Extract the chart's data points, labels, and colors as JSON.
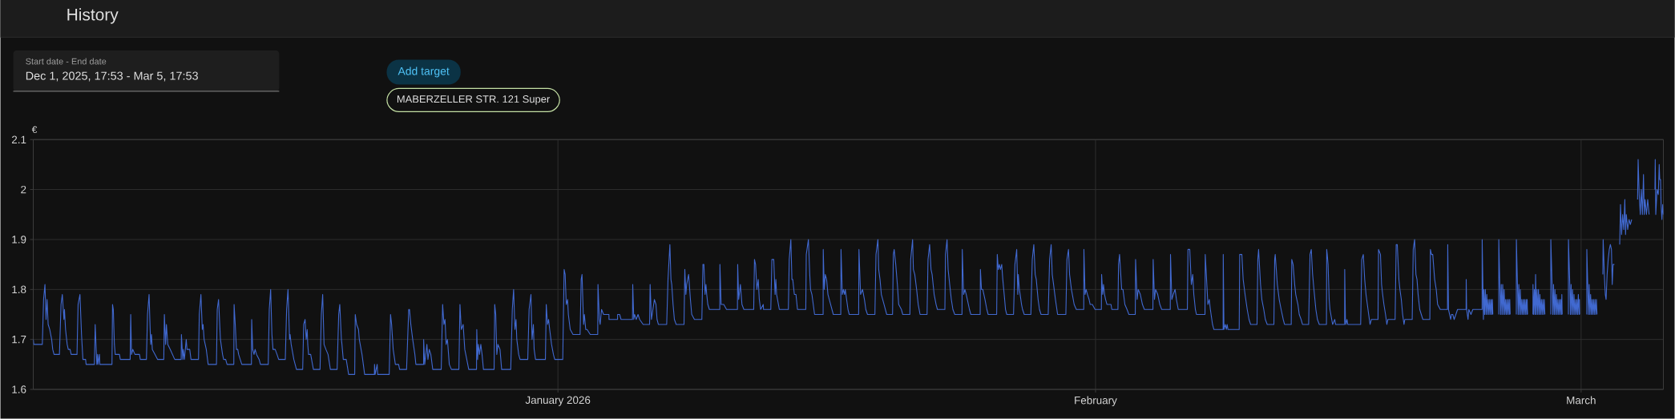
{
  "chart_data": {
    "type": "line",
    "title": "History",
    "ylabel": "€",
    "annotations": [
      "Start date - End date",
      "Dec 1, 2025, 17:53 - Mar 5, 17:53",
      "Add target",
      "MABERZELLER STR. 121 Super"
    ],
    "color": "#4169d0",
    "grid": true,
    "xlim": [
      "2025-12-01T17:53",
      "2026-03-05T17:53"
    ],
    "xticks": [
      {
        "value": "2026-01-01",
        "label": "January 2026"
      },
      {
        "value": "2026-02-01",
        "label": "February"
      },
      {
        "value": "2026-03-01",
        "label": "March"
      }
    ],
    "ylim": [
      1.6,
      2.1
    ],
    "yticks": [
      1.6,
      1.7,
      1.8,
      1.9,
      2,
      2.1
    ],
    "x": [
      "2025-12-01T17:53",
      "2025-12-01T18:35",
      "2025-12-02T06:25",
      "2025-12-02T08:10",
      "2025-12-02T10:05",
      "2025-12-02T11:35",
      "2025-12-02T13:00",
      "2025-12-02T14:30",
      "2025-12-02T16:40",
      "2025-12-02T19:20",
      "2025-12-02T20:50",
      "2025-12-02T22:40",
      "2025-12-03T06:05",
      "2025-12-03T08:20",
      "2025-12-03T10:05",
      "2025-12-03T12:20",
      "2025-12-03T13:05",
      "2025-12-03T14:35",
      "2025-12-03T16:50",
      "2025-12-03T18:20",
      "2025-12-03T20:50",
      "2025-12-03T22:20",
      "2025-12-04T06:25",
      "2025-12-04T07:55",
      "2025-12-04T10:30",
      "2025-12-04T12:40",
      "2025-12-04T14:35",
      "2025-12-04T18:20",
      "2025-12-04T19:00",
      "2025-12-05T06:30",
      "2025-12-05T07:35",
      "2025-12-05T09:50",
      "2025-12-05T10:55",
      "2025-12-05T11:30",
      "2025-12-05T13:30",
      "2025-12-05T14:00",
      "2025-12-06T06:50",
      "2025-12-06T07:35",
      "2025-12-06T08:40",
      "2025-12-06T10:10",
      "2025-12-06T11:20",
      "2025-12-06T17:10",
      "2025-12-06T18:20",
      "2025-12-07T08:00",
      "2025-12-07T08:45",
      "2025-12-07T09:55",
      "2025-12-07T11:40",
      "2025-12-07T14:35",
      "2025-12-07T20:55",
      "2025-12-07T22:00",
      "2025-12-08T06:30",
      "2025-12-08T08:00",
      "2025-12-08T10:10",
      "2025-12-08T11:40",
      "2025-12-08T12:30",
      "2025-12-08T13:30",
      "2025-12-08T14:40",
      "2025-12-08T18:25",
      "2025-12-08T22:00",
      "2025-12-09T06:30",
      "2025-12-09T07:20",
      "2025-12-09T09:05",
      "2025-12-09T10:10",
      "2025-12-09T12:05",
      "2025-12-09T15:30",
      "2025-12-09T21:40",
      "2025-12-10T06:35",
      "2025-12-10T06:55",
      "2025-12-10T08:50",
      "2025-12-10T09:35",
      "2025-12-10T11:05",
      "2025-12-10T13:35",
      "2025-12-10T14:40",
      "2025-12-10T18:25",
      "2025-12-10T20:10",
      "2025-12-11T06:35",
      "2025-12-11T07:40",
      "2025-12-11T09:55",
      "2025-12-11T11:50",
      "2025-12-11T12:55",
      "2025-12-11T14:20",
      "2025-12-11T17:20",
      "2025-12-11T19:55",
      "2025-12-12T07:25",
      "2025-12-12T08:30",
      "2025-12-12T10:20",
      "2025-12-12T12:55",
      "2025-12-12T15:50",
      "2025-12-12T17:20",
      "2025-12-12T20:10",
      "2025-12-12T22:05",
      "2025-12-13T07:25",
      "2025-12-13T07:50",
      "2025-12-13T09:25",
      "2025-12-13T11:05",
      "2025-12-13T12:55",
      "2025-12-13T14:05",
      "2025-12-13T18:30",
      "2025-12-14T07:50",
      "2025-12-14T08:10",
      "2025-12-14T09:35",
      "2025-12-14T11:25",
      "2025-12-14T12:55",
      "2025-12-14T14:55",
      "2025-12-14T18:30",
      "2025-12-14T20:20",
      "2025-12-15T07:05",
      "2025-12-15T08:30",
      "2025-12-15T10:25",
      "2025-12-15T12:10",
      "2025-12-15T13:40",
      "2025-12-15T16:40",
      "2025-12-15T19:15",
      "2025-12-15T21:30",
      "2025-12-16T06:40",
      "2025-12-16T08:30",
      "2025-12-16T10:25",
      "2025-12-16T12:35",
      "2025-12-16T13:20",
      "2025-12-16T14:50",
      "2025-12-16T18:30",
      "2025-12-16T22:10",
      "2025-12-17T06:45",
      "2025-12-17T08:10",
      "2025-12-17T10:05",
      "2025-12-17T11:35",
      "2025-12-17T13:00",
      "2025-12-17T13:45",
      "2025-12-17T14:55",
      "2025-12-17T17:50",
      "2025-12-17T21:35",
      "2025-12-18T06:45",
      "2025-12-18T08:35",
      "2025-12-18T10:25",
      "2025-12-18T12:20",
      "2025-12-18T14:55",
      "2025-12-18T17:50",
      "2025-12-18T21:05",
      "2025-12-19T06:25",
      "2025-12-19T08:35",
      "2025-12-19T10:05",
      "2025-12-19T12:20",
      "2025-12-19T13:05",
      "2025-12-19T14:55",
      "2025-12-19T19:00",
      "2025-12-19T22:20",
      "2025-12-20T06:45",
      "2025-12-20T07:30",
      "2025-12-20T09:25",
      "2025-12-20T12:00",
      "2025-12-20T13:05",
      "2025-12-20T16:50",
      "2025-12-20T20:30",
      "2025-12-21T10:00",
      "2025-12-21T10:10",
      "2025-12-21T11:00",
      "2025-12-21T13:50",
      "2025-12-21T14:30",
      "2025-12-22T06:30",
      "2025-12-22T08:20",
      "2025-12-22T09:50",
      "2025-12-22T12:00",
      "2025-12-22T15:00",
      "2025-12-22T19:30",
      "2025-12-22T20:55",
      "2025-12-23T06:30",
      "2025-12-23T09:30",
      "2025-12-23T10:35",
      "2025-12-23T12:25",
      "2025-12-23T15:00",
      "2025-12-23T18:00",
      "2025-12-23T19:25",
      "2025-12-24T06:05",
      "2025-12-24T06:10",
      "2025-12-24T07:40",
      "2025-12-24T10:40",
      "2025-12-24T12:05",
      "2025-12-24T13:55",
      "2025-12-24T16:05",
      "2025-12-24T18:45",
      "2025-12-25T06:30",
      "2025-12-25T08:25",
      "2025-12-25T10:15",
      "2025-12-25T11:45",
      "2025-12-25T13:15",
      "2025-12-25T15:05",
      "2025-12-25T17:40",
      "2025-12-25T20:35",
      "2025-12-26T06:55",
      "2025-12-26T08:25",
      "2025-12-26T10:15",
      "2025-12-26T12:50",
      "2025-12-26T15:05",
      "2025-12-26T20:35",
      "2025-12-27T07:20",
      "2025-12-27T07:40",
      "2025-12-27T08:50",
      "2025-12-27T09:55",
      "2025-12-27T11:25",
      "2025-12-27T13:15",
      "2025-12-27T15:00",
      "2025-12-27T16:55",
      "2025-12-28T07:40",
      "2025-12-28T08:30",
      "2025-12-28T09:55",
      "2025-12-28T11:25",
      "2025-12-28T12:55",
      "2025-12-28T15:50",
      "2025-12-28T18:05",
      "2025-12-29T06:40",
      "2025-12-29T08:50",
      "2025-12-29T10:40",
      "2025-12-29T12:30",
      "2025-12-29T14:00",
      "2025-12-29T15:05",
      "2025-12-29T17:40",
      "2025-12-29T19:35",
      "2025-12-30T06:15",
      "2025-12-30T08:05",
      "2025-12-30T10:40",
      "2025-12-30T12:10",
      "2025-12-30T14:00",
      "2025-12-30T15:05",
      "2025-12-30T17:00",
      "2025-12-31T06:40",
      "2025-12-31T07:50",
      "2025-12-31T09:35",
      "2025-12-31T11:05",
      "2025-12-31T12:35",
      "2025-12-31T15:10",
      "2025-12-31T17:45",
      "2025-12-31T19:35",
      "2026-01-01T06:40",
      "2026-01-01T08:35",
      "2026-01-01T10:00",
      "2026-01-01T11:30",
      "2026-01-01T13:20",
      "2026-01-01T14:25",
      "2026-01-01T17:00",
      "2026-01-01T20:50",
      "2026-01-02T06:40",
      "2026-01-02T08:10",
      "2026-01-02T09:20",
      "2026-01-02T11:30",
      "2026-01-02T12:35",
      "2026-01-02T14:30",
      "2026-01-02T16:20",
      "2026-01-02T20:45",
      "2026-01-03T07:05",
      "2026-01-03T07:25",
      "2026-01-03T09:20",
      "2026-01-03T10:25",
      "2026-01-03T12:20",
      "2026-01-03T15:10",
      "2026-01-03T22:35",
      "2026-01-03T22:40",
      "2026-01-04T10:30",
      "2026-01-04T10:35",
      "2026-01-04T13:25",
      "2026-01-04T15:20",
      "2026-01-05T07:10",
      "2026-01-05T07:30",
      "2026-01-05T09:00",
      "2026-01-05T10:05",
      "2026-01-05T12:20",
      "2026-01-05T14:50",
      "2026-01-05T17:05",
      "2026-01-05T21:55",
      "2026-01-06T06:50",
      "2026-01-06T07:35",
      "2026-01-06T09:25",
      "2026-01-06T13:30",
      "2026-01-06T15:40",
      "2026-01-06T17:10",
      "2026-01-06T19:00",
      "2026-01-07T06:30",
      "2026-01-07T08:20",
      "2026-01-07T10:55",
      "2026-01-07T12:25",
      "2026-01-07T13:30",
      "2026-01-07T15:20",
      "2026-01-07T17:10",
      "2026-01-07T19:40",
      "2026-01-08T06:30",
      "2026-01-08T07:35",
      "2026-01-08T09:05",
      "2026-01-08T10:10",
      "2026-01-08T12:50",
      "2026-01-08T15:20",
      "2026-01-08T17:10",
      "2026-01-08T20:55",
      "2026-01-09T07:10",
      "2026-01-09T08:40",
      "2026-01-09T10:00",
      "2026-01-09T11:40",
      "2026-01-09T12:50",
      "2026-01-09T13:55",
      "2026-01-09T15:25",
      "2026-01-09T17:35",
      "2026-01-10T08:00",
      "2026-01-10T08:10",
      "2026-01-10T09:50",
      "2026-01-10T13:30",
      "2026-01-10T17:20",
      "2026-01-11T08:25",
      "2026-01-11T08:45",
      "2026-01-11T10:10",
      "2026-01-11T12:30",
      "2026-01-11T14:40",
      "2026-01-11T17:20",
      "2026-01-12T06:55",
      "2026-01-12T08:00",
      "2026-01-12T09:30",
      "2026-01-12T11:20",
      "2026-01-12T13:10",
      "2026-01-12T14:40",
      "2026-01-12T16:30",
      "2026-01-12T20:10",
      "2026-01-12T20:30",
      "2026-01-13T06:35",
      "2026-01-13T08:05",
      "2026-01-13T10:40",
      "2026-01-13T12:30",
      "2026-01-13T13:35",
      "2026-01-13T14:40",
      "2026-01-13T18:25",
      "2026-01-14T06:55",
      "2026-01-14T08:05",
      "2026-01-14T10:20",
      "2026-01-14T11:50",
      "2026-01-14T13:00",
      "2026-01-14T15:10",
      "2026-01-14T17:25",
      "2026-01-14T19:30",
      "2026-01-15T07:00",
      "2026-01-15T07:40",
      "2026-01-15T10:40",
      "2026-01-15T12:30",
      "2026-01-15T13:35",
      "2026-01-15T15:30",
      "2026-01-15T19:10",
      "2026-01-16T07:00",
      "2026-01-16T07:10",
      "2026-01-16T08:35",
      "2026-01-16T10:00",
      "2026-01-16T11:50",
      "2026-01-16T13:40",
      "2026-01-16T17:25",
      "2026-01-16T21:05",
      "2026-01-17T07:25",
      "2026-01-17T07:45",
      "2026-01-17T09:35",
      "2026-01-17T11:05",
      "2026-01-17T12:35",
      "2026-01-17T13:40",
      "2026-01-17T15:30",
      "2026-01-17T17:25",
      "2026-01-17T19:10",
      "2026-01-18T08:10",
      "2026-01-18T08:35",
      "2026-01-18T10:50",
      "2026-01-18T13:35",
      "2026-01-18T16:10",
      "2026-01-18T18:05",
      "2026-01-18T20:25",
      "2026-01-19T06:40",
      "2026-01-19T08:10",
      "2026-01-19T10:50",
      "2026-01-19T11:55",
      "2026-01-19T13:45",
      "2026-01-19T15:35",
      "2026-01-19T19:20",
      "2026-01-19T23:00",
      "2026-01-20T07:05",
      "2026-01-20T08:10",
      "2026-01-20T09:20",
      "2026-01-20T11:30",
      "2026-01-20T13:45",
      "2026-01-20T15:35",
      "2026-01-20T19:20",
      "2026-01-20T21:10",
      "2026-01-21T07:05",
      "2026-01-21T08:10",
      "2026-01-21T10:50",
      "2026-01-21T11:55",
      "2026-01-21T13:50",
      "2026-01-21T16:25",
      "2026-01-21T18:35",
      "2026-01-21T21:10",
      "2026-01-22T06:50",
      "2026-01-22T08:10",
      "2026-01-22T10:25",
      "2026-01-22T12:20",
      "2026-01-22T13:50",
      "2026-01-22T16:40",
      "2026-01-22T19:20",
      "2026-01-22T21:10",
      "2026-01-23T07:30",
      "2026-01-23T08:20",
      "2026-01-23T10:30",
      "2026-01-23T12:00",
      "2026-01-23T14:10",
      "2026-01-23T16:25",
      "2026-01-23T18:35",
      "2026-01-23T21:10",
      "2026-01-24T07:10",
      "2026-01-24T07:35",
      "2026-01-24T09:25",
      "2026-01-24T11:15",
      "2026-01-24T13:05",
      "2026-01-24T14:35",
      "2026-01-24T17:30",
      "2026-01-24T19:25",
      "2026-01-25T08:20",
      "2026-01-25T08:40",
      "2026-01-25T10:10",
      "2026-01-25T12:00",
      "2026-01-25T15:00",
      "2026-01-25T17:35",
      "2026-01-25T19:25",
      "2026-01-26T07:10",
      "2026-01-26T08:00",
      "2026-01-26T09:25",
      "2026-01-26T10:55",
      "2026-01-26T12:20",
      "2026-01-26T14:10",
      "2026-01-26T15:40",
      "2026-01-26T17:35",
      "2026-01-26T19:25",
      "2026-01-26T21:10",
      "2026-01-27T06:30",
      "2026-01-27T08:25",
      "2026-01-27T10:55",
      "2026-01-27T12:25",
      "2026-01-27T13:10",
      "2026-01-27T14:35",
      "2026-01-27T15:40",
      "2026-01-27T17:35",
      "2026-01-27T19:00",
      "2026-01-27T21:20",
      "2026-01-28T06:30",
      "2026-01-28T08:25",
      "2026-01-28T10:35",
      "2026-01-28T12:30",
      "2026-01-28T14:00",
      "2026-01-28T16:30",
      "2026-01-28T18:25",
      "2026-01-28T20:35",
      "2026-01-29T06:30",
      "2026-01-29T08:25",
      "2026-01-29T10:35",
      "2026-01-29T12:05",
      "2026-01-29T13:55",
      "2026-01-29T16:30",
      "2026-01-29T19:30",
      "2026-01-30T06:55",
      "2026-01-30T08:25",
      "2026-01-30T10:35",
      "2026-01-30T12:05",
      "2026-01-30T14:40",
      "2026-01-30T18:25",
      "2026-01-30T21:25",
      "2026-01-31T07:40",
      "2026-01-31T07:55",
      "2026-01-31T09:30",
      "2026-01-31T11:00",
      "2026-01-31T12:50",
      "2026-01-31T15:05",
      "2026-01-31T16:35",
      "2026-01-31T19:35",
      "2026-01-31T23:20",
      "2026-02-01T08:05",
      "2026-02-01T08:25",
      "2026-02-01T09:55",
      "2026-02-01T11:00",
      "2026-02-01T12:30",
      "2026-02-01T13:55",
      "2026-02-01T15:50",
      "2026-02-01T21:25",
      "2026-02-01T22:30",
      "2026-02-02T07:00",
      "2026-02-02T07:50",
      "2026-02-02T09:15",
      "2026-02-02T12:10",
      "2026-02-02T14:00",
      "2026-02-02T16:35",
      "2026-02-02T19:35",
      "2026-02-02T22:10",
      "2026-02-03T07:00",
      "2026-02-03T07:25",
      "2026-02-03T09:35",
      "2026-02-03T11:05",
      "2026-02-03T14:00",
      "2026-02-03T16:55",
      "2026-02-03T19:35",
      "2026-02-04T07:25",
      "2026-02-04T07:45",
      "2026-02-04T09:35",
      "2026-02-04T11:05",
      "2026-02-04T14:05",
      "2026-02-04T17:00",
      "2026-02-04T19:35",
      "2026-02-05T07:25",
      "2026-02-05T07:45",
      "2026-02-05T09:35",
      "2026-02-05T11:30",
      "2026-02-05T14:05",
      "2026-02-05T15:55",
      "2026-02-05T18:30",
      "2026-02-06T07:05",
      "2026-02-06T07:55",
      "2026-02-06T10:25",
      "2026-02-06T12:35",
      "2026-02-06T14:30",
      "2026-02-06T16:00",
      "2026-02-06T18:10",
      "2026-02-06T19:40",
      "2026-02-07T07:30",
      "2026-02-07T07:50",
      "2026-02-07T10:25",
      "2026-02-07T11:30",
      "2026-02-07T13:25",
      "2026-02-07T14:55",
      "2026-02-07T17:55",
      "2026-02-07T19:45",
      "2026-02-08T08:35",
      "2026-02-08T08:45",
      "2026-02-08T09:45",
      "2026-02-08T11:35",
      "2026-02-08T13:00",
      "2026-02-08T14:10",
      "2026-02-08T15:15",
      "2026-02-09T06:50",
      "2026-02-09T07:30",
      "2026-02-09T10:30",
      "2026-02-09T12:20",
      "2026-02-09T14:55",
      "2026-02-09T17:55",
      "2026-02-09T20:25",
      "2026-02-09T22:40",
      "2026-02-10T07:30",
      "2026-02-10T08:35",
      "2026-02-10T09:40",
      "2026-02-10T12:20",
      "2026-02-10T14:10",
      "2026-02-10T16:50",
      "2026-02-10T19:00",
      "2026-02-10T21:35",
      "2026-02-11T06:50",
      "2026-02-11T07:55",
      "2026-02-11T08:40",
      "2026-02-11T10:10",
      "2026-02-11T11:35",
      "2026-02-11T14:10",
      "2026-02-11T16:50",
      "2026-02-11T19:45",
      "2026-02-11T21:35",
      "2026-02-12T06:50",
      "2026-02-12T07:35",
      "2026-02-12T09:25",
      "2026-02-12T11:35",
      "2026-02-12T13:05",
      "2026-02-12T16:05",
      "2026-02-12T17:55",
      "2026-02-12T20:30",
      "2026-02-12T22:25",
      "2026-02-13T06:55",
      "2026-02-13T08:50",
      "2026-02-13T10:35",
      "2026-02-13T12:25",
      "2026-02-13T14:15",
      "2026-02-13T16:55",
      "2026-02-13T19:05",
      "2026-02-13T21:40",
      "2026-02-14T07:35",
      "2026-02-14T07:55",
      "2026-02-14T08:40",
      "2026-02-14T09:50",
      "2026-02-14T11:20",
      "2026-02-14T12:25",
      "2026-02-14T16:05",
      "2026-02-14T19:05",
      "2026-02-14T20:10",
      "2026-02-15T08:45",
      "2026-02-15T08:50",
      "2026-02-15T09:50",
      "2026-02-15T10:30",
      "2026-02-15T12:00",
      "2026-02-15T13:05",
      "2026-02-16T06:55",
      "2026-02-16T08:25",
      "2026-02-16T10:35",
      "2026-02-16T12:30",
      "2026-02-16T14:20",
      "2026-02-16T16:10",
      "2026-02-16T18:00",
      "2026-02-16T19:55",
      "2026-02-16T21:45",
      "2026-02-17T06:55",
      "2026-02-17T07:40",
      "2026-02-17T10:20",
      "2026-02-17T11:50",
      "2026-02-17T13:20",
      "2026-02-17T15:05",
      "2026-02-17T17:20",
      "2026-02-17T19:10",
      "2026-02-17T20:35",
      "2026-02-18T06:35",
      "2026-02-18T08:05",
      "2026-02-18T09:35",
      "2026-02-18T11:50",
      "2026-02-18T13:15",
      "2026-02-18T15:10",
      "2026-02-18T17:00",
      "2026-02-18T18:55",
      "2026-02-18T20:00",
      "2026-02-19T06:15",
      "2026-02-19T07:40",
      "2026-02-19T09:35",
      "2026-02-19T11:25",
      "2026-02-19T12:55",
      "2026-02-19T14:25",
      "2026-02-19T16:40",
      "2026-02-19T18:50",
      "2026-02-19T21:00",
      "2026-02-20T06:40",
      "2026-02-20T07:25",
      "2026-02-20T08:55",
      "2026-02-20T10:40",
      "2026-02-20T13:20",
      "2026-02-20T15:30",
      "2026-02-20T17:25",
      "2026-02-20T21:05",
      "2026-02-21T07:05",
      "2026-02-21T07:25",
      "2026-02-21T08:30",
      "2026-02-21T11:30",
      "2026-02-21T12:35",
      "2026-02-21T14:25",
      "2026-02-21T16:20",
      "2026-02-21T21:00",
      "2026-02-22T08:50",
      "2026-02-22T09:00",
      "2026-02-22T09:35",
      "2026-02-22T11:30",
      "2026-02-22T12:35",
      "2026-02-22T15:35",
      "2026-02-22T18:10",
      "2026-02-23T07:00",
      "2026-02-23T07:05",
      "2026-02-23T08:50",
      "2026-02-23T09:30",
      "2026-02-23T10:30",
      "2026-02-23T11:30",
      "2026-02-23T12:30",
      "2026-02-23T13:30",
      "2026-02-23T14:30",
      "2026-02-23T15:30",
      "2026-02-23T16:30",
      "2026-02-23T17:30",
      "2026-02-23T18:30",
      "2026-02-23T19:30",
      "2026-02-23T20:30",
      "2026-02-23T21:15",
      "2026-02-23T21:50",
      "2026-02-23T23:00",
      "2026-02-24T06:00",
      "2026-02-24T06:05",
      "2026-02-24T07:30",
      "2026-02-24T08:30",
      "2026-02-24T09:30",
      "2026-02-24T10:30",
      "2026-02-24T11:30",
      "2026-02-24T12:30",
      "2026-02-24T13:30",
      "2026-02-24T14:30",
      "2026-02-24T15:30",
      "2026-02-24T16:30",
      "2026-02-24T17:30",
      "2026-02-24T18:30",
      "2026-02-24T19:30",
      "2026-02-24T20:30",
      "2026-02-24T21:15",
      "2026-02-24T21:50",
      "2026-02-24T23:00",
      "2026-02-25T06:20",
      "2026-02-25T06:25",
      "2026-02-25T07:55",
      "2026-02-25T08:50",
      "2026-02-25T09:50",
      "2026-02-25T10:50",
      "2026-02-25T11:50",
      "2026-02-25T12:50",
      "2026-02-25T13:50",
      "2026-02-25T14:50",
      "2026-02-25T15:50",
      "2026-02-25T16:50",
      "2026-02-25T17:50",
      "2026-02-25T18:50",
      "2026-02-25T19:50",
      "2026-02-25T20:50",
      "2026-02-25T21:20",
      "2026-02-25T21:50",
      "2026-02-25T23:00",
      "2026-02-26T05:20",
      "2026-02-26T05:25",
      "2026-02-26T06:20",
      "2026-02-26T07:20",
      "2026-02-26T08:20",
      "2026-02-26T09:00",
      "2026-02-26T10:00",
      "2026-02-26T11:00",
      "2026-02-26T12:00",
      "2026-02-26T13:00",
      "2026-02-26T14:00",
      "2026-02-26T15:00",
      "2026-02-26T16:00",
      "2026-02-26T17:00",
      "2026-02-26T18:00",
      "2026-02-26T19:00",
      "2026-02-26T20:00",
      "2026-02-26T21:00",
      "2026-02-26T21:50",
      "2026-02-26T23:00",
      "2026-02-27T06:00",
      "2026-02-27T06:05",
      "2026-02-27T07:50",
      "2026-02-27T08:50",
      "2026-02-27T09:50",
      "2026-02-27T10:50",
      "2026-02-27T11:50",
      "2026-02-27T12:50",
      "2026-02-27T13:50",
      "2026-02-27T14:50",
      "2026-02-27T15:50",
      "2026-02-27T16:50",
      "2026-02-27T17:50",
      "2026-02-27T18:50",
      "2026-02-27T19:50",
      "2026-02-27T20:50",
      "2026-02-27T21:20",
      "2026-02-27T21:50",
      "2026-02-27T23:00",
      "2026-02-28T06:25",
      "2026-02-28T06:30",
      "2026-02-28T08:20",
      "2026-02-28T09:10",
      "2026-02-28T10:10",
      "2026-02-28T11:10",
      "2026-02-28T12:10",
      "2026-02-28T13:10",
      "2026-02-28T14:10",
      "2026-02-28T15:10",
      "2026-02-28T16:10",
      "2026-02-28T17:10",
      "2026-02-28T18:10",
      "2026-02-28T19:10",
      "2026-02-28T20:10",
      "2026-02-28T21:10",
      "2026-02-28T21:40",
      "2026-02-28T22:00",
      "2026-02-28T23:00",
      "2026-03-01T07:50",
      "2026-03-01T07:55",
      "2026-03-01T09:20",
      "2026-03-01T10:10",
      "2026-03-01T11:10",
      "2026-03-01T12:10",
      "2026-03-01T13:10",
      "2026-03-01T14:10",
      "2026-03-01T15:10",
      "2026-03-01T16:10",
      "2026-03-01T17:10",
      "2026-03-01T18:10",
      "2026-03-01T19:10",
      "2026-03-01T20:10",
      "2026-03-01T21:10",
      "2026-03-01T22:00",
      "2026-03-01T23:00",
      "2026-03-02T06:05",
      "2026-03-02T06:30",
      "2026-03-02T08:25",
      "2026-03-02T09:30",
      "2026-03-02T10:35",
      "2026-03-02T12:00",
      "2026-03-02T13:30",
      "2026-03-02T15:00",
      "2026-03-02T16:30",
      "2026-03-02T18:00",
      "2026-03-02T19:05",
      "2026-03-02T20:10",
      "2026-03-02T22:00",
      "2026-03-02T23:00",
      "2026-03-03T05:25",
      "2026-03-03T06:30",
      "2026-03-03T08:00",
      "2026-03-03T09:30",
      "2026-03-03T11:00",
      "2026-03-03T12:30",
      "2026-03-03T13:30",
      "2026-03-03T14:35",
      "2026-03-03T16:30",
      "2026-03-03T18:20",
      "2026-03-03T20:10",
      "2026-03-03T22:00",
      "2026-03-03T23:00",
      "2026-03-04T06:10",
      "2026-03-04T06:55",
      "2026-03-04T08:25",
      "2026-03-04T09:55",
      "2026-03-04T11:20",
      "2026-03-04T12:50",
      "2026-03-04T14:20",
      "2026-03-04T15:25",
      "2026-03-04T16:30",
      "2026-03-04T18:25",
      "2026-03-04T20:10",
      "2026-03-04T22:05",
      "2026-03-04T23:00",
      "2026-03-05T06:10",
      "2026-03-05T06:35",
      "2026-03-05T07:20",
      "2026-03-05T09:05",
      "2026-03-05T10:50",
      "2026-03-05T12:05",
      "2026-03-05T12:50",
      "2026-03-05T13:55",
      "2026-03-05T14:40",
      "2026-03-05T15:50",
      "2026-03-05T16:55",
      "2026-03-05T17:50"
    ],
    "values": [
      1.7,
      1.69,
      1.69,
      1.78,
      1.81,
      1.74,
      1.78,
      1.73,
      1.72,
      1.7,
      1.68,
      1.67,
      1.67,
      1.77,
      1.79,
      1.74,
      1.76,
      1.72,
      1.69,
      1.68,
      1.68,
      1.67,
      1.67,
      1.77,
      1.79,
      1.71,
      1.66,
      1.66,
      1.65,
      1.65,
      1.73,
      1.65,
      1.67,
      1.65,
      1.67,
      1.65,
      1.65,
      1.77,
      1.76,
      1.69,
      1.67,
      1.67,
      1.66,
      1.66,
      1.75,
      1.67,
      1.68,
      1.67,
      1.67,
      1.66,
      1.66,
      1.75,
      1.79,
      1.72,
      1.69,
      1.71,
      1.68,
      1.67,
      1.66,
      1.66,
      1.75,
      1.69,
      1.73,
      1.69,
      1.68,
      1.66,
      1.66,
      1.71,
      1.66,
      1.68,
      1.66,
      1.7,
      1.68,
      1.68,
      1.66,
      1.66,
      1.75,
      1.79,
      1.72,
      1.73,
      1.7,
      1.68,
      1.65,
      1.65,
      1.76,
      1.78,
      1.7,
      1.67,
      1.66,
      1.66,
      1.65,
      1.65,
      1.77,
      1.73,
      1.68,
      1.68,
      1.67,
      1.65,
      1.65,
      1.74,
      1.68,
      1.67,
      1.68,
      1.67,
      1.66,
      1.65,
      1.65,
      1.76,
      1.8,
      1.71,
      1.68,
      1.68,
      1.67,
      1.66,
      1.66,
      1.76,
      1.8,
      1.7,
      1.71,
      1.69,
      1.66,
      1.64,
      1.64,
      1.73,
      1.74,
      1.7,
      1.72,
      1.69,
      1.67,
      1.67,
      1.64,
      1.64,
      1.75,
      1.79,
      1.69,
      1.68,
      1.67,
      1.64,
      1.64,
      1.75,
      1.77,
      1.7,
      1.69,
      1.66,
      1.66,
      1.63,
      1.63,
      1.75,
      1.73,
      1.72,
      1.7,
      1.67,
      1.63,
      1.63,
      1.65,
      1.63,
      1.65,
      1.63,
      1.63,
      1.75,
      1.73,
      1.68,
      1.65,
      1.65,
      1.64,
      1.64,
      1.76,
      1.76,
      1.73,
      1.7,
      1.67,
      1.65,
      1.65,
      1.7,
      1.65,
      1.69,
      1.66,
      1.68,
      1.67,
      1.64,
      1.64,
      1.77,
      1.73,
      1.74,
      1.69,
      1.7,
      1.65,
      1.64,
      1.64,
      1.77,
      1.72,
      1.73,
      1.68,
      1.64,
      1.64,
      1.72,
      1.66,
      1.69,
      1.67,
      1.69,
      1.67,
      1.64,
      1.64,
      1.77,
      1.75,
      1.67,
      1.69,
      1.68,
      1.64,
      1.64,
      1.76,
      1.8,
      1.72,
      1.74,
      1.7,
      1.67,
      1.66,
      1.66,
      1.76,
      1.79,
      1.7,
      1.73,
      1.68,
      1.66,
      1.66,
      1.77,
      1.73,
      1.74,
      1.72,
      1.69,
      1.67,
      1.66,
      1.66,
      1.84,
      1.83,
      1.77,
      1.78,
      1.75,
      1.72,
      1.71,
      1.71,
      1.82,
      1.83,
      1.73,
      1.75,
      1.72,
      1.72,
      1.71,
      1.71,
      1.81,
      1.74,
      1.73,
      1.76,
      1.75,
      1.75,
      1.74,
      1.74,
      1.75,
      1.75,
      1.74,
      1.74,
      1.81,
      1.74,
      1.75,
      1.74,
      1.75,
      1.74,
      1.73,
      1.73,
      1.81,
      1.74,
      1.78,
      1.77,
      1.74,
      1.73,
      1.73,
      1.82,
      1.89,
      1.82,
      1.81,
      1.77,
      1.74,
      1.73,
      1.73,
      1.84,
      1.79,
      1.81,
      1.83,
      1.78,
      1.75,
      1.74,
      1.74,
      1.85,
      1.85,
      1.79,
      1.81,
      1.79,
      1.77,
      1.76,
      1.76,
      1.85,
      1.77,
      1.77,
      1.76,
      1.76,
      1.85,
      1.78,
      1.81,
      1.77,
      1.76,
      1.76,
      1.86,
      1.85,
      1.8,
      1.82,
      1.78,
      1.76,
      1.77,
      1.76,
      1.76,
      1.86,
      1.86,
      1.79,
      1.82,
      1.79,
      1.76,
      1.76,
      1.86,
      1.9,
      1.82,
      1.82,
      1.79,
      1.79,
      1.76,
      1.76,
      1.87,
      1.9,
      1.83,
      1.8,
      1.79,
      1.75,
      1.75,
      1.88,
      1.8,
      1.83,
      1.82,
      1.79,
      1.77,
      1.75,
      1.75,
      1.88,
      1.79,
      1.8,
      1.79,
      1.8,
      1.78,
      1.76,
      1.75,
      1.75,
      1.88,
      1.79,
      1.8,
      1.78,
      1.76,
      1.75,
      1.75,
      1.87,
      1.9,
      1.84,
      1.82,
      1.79,
      1.77,
      1.75,
      1.75,
      1.87,
      1.88,
      1.85,
      1.81,
      1.77,
      1.76,
      1.75,
      1.75,
      1.86,
      1.9,
      1.84,
      1.83,
      1.8,
      1.77,
      1.75,
      1.75,
      1.86,
      1.89,
      1.84,
      1.83,
      1.79,
      1.77,
      1.76,
      1.76,
      1.87,
      1.9,
      1.84,
      1.81,
      1.78,
      1.76,
      1.75,
      1.75,
      1.88,
      1.79,
      1.8,
      1.79,
      1.78,
      1.76,
      1.75,
      1.75,
      1.84,
      1.8,
      1.8,
      1.78,
      1.76,
      1.75,
      1.75,
      1.87,
      1.84,
      1.85,
      1.84,
      1.85,
      1.82,
      1.79,
      1.76,
      1.75,
      1.75,
      1.85,
      1.88,
      1.79,
      1.83,
      1.8,
      1.79,
      1.77,
      1.76,
      1.75,
      1.75,
      1.86,
      1.89,
      1.83,
      1.82,
      1.78,
      1.76,
      1.75,
      1.75,
      1.86,
      1.89,
      1.83,
      1.81,
      1.78,
      1.75,
      1.75,
      1.86,
      1.88,
      1.83,
      1.8,
      1.77,
      1.76,
      1.76,
      1.88,
      1.79,
      1.8,
      1.79,
      1.78,
      1.77,
      1.77,
      1.76,
      1.76,
      1.83,
      1.79,
      1.81,
      1.79,
      1.78,
      1.77,
      1.77,
      1.76,
      1.76,
      1.85,
      1.87,
      1.8,
      1.8,
      1.77,
      1.76,
      1.75,
      1.75,
      1.86,
      1.78,
      1.8,
      1.79,
      1.77,
      1.76,
      1.76,
      1.86,
      1.78,
      1.8,
      1.79,
      1.77,
      1.76,
      1.76,
      1.87,
      1.78,
      1.79,
      1.8,
      1.78,
      1.76,
      1.76,
      1.88,
      1.88,
      1.81,
      1.83,
      1.79,
      1.76,
      1.75,
      1.75,
      1.87,
      1.8,
      1.77,
      1.78,
      1.76,
      1.73,
      1.72,
      1.72,
      1.87,
      1.72,
      1.73,
      1.72,
      1.73,
      1.72,
      1.72,
      1.87,
      1.87,
      1.82,
      1.79,
      1.76,
      1.74,
      1.73,
      1.73,
      1.86,
      1.88,
      1.81,
      1.78,
      1.76,
      1.74,
      1.73,
      1.73,
      1.86,
      1.87,
      1.84,
      1.81,
      1.78,
      1.76,
      1.74,
      1.73,
      1.73,
      1.86,
      1.85,
      1.81,
      1.79,
      1.77,
      1.75,
      1.74,
      1.73,
      1.73,
      1.87,
      1.88,
      1.83,
      1.8,
      1.76,
      1.74,
      1.73,
      1.73,
      1.88,
      1.87,
      1.85,
      1.78,
      1.76,
      1.73,
      1.74,
      1.73,
      1.73,
      1.84,
      1.74,
      1.73,
      1.74,
      1.73,
      1.73,
      1.86,
      1.87,
      1.82,
      1.79,
      1.77,
      1.75,
      1.73,
      1.74,
      1.74,
      1.88,
      1.87,
      1.81,
      1.79,
      1.77,
      1.75,
      1.73,
      1.74,
      1.74,
      1.89,
      1.89,
      1.82,
      1.8,
      1.78,
      1.75,
      1.73,
      1.74,
      1.74,
      1.88,
      1.9,
      1.83,
      1.82,
      1.79,
      1.76,
      1.75,
      1.74,
      1.74,
      1.88,
      1.87,
      1.87,
      1.82,
      1.8,
      1.77,
      1.76,
      1.76,
      1.89,
      1.76,
      1.74,
      1.75,
      1.75,
      1.74,
      1.76,
      1.76,
      1.82,
      1.76,
      1.74,
      1.76,
      1.75,
      1.76,
      1.76,
      1.9,
      1.74,
      1.8,
      1.75,
      1.8,
      1.75,
      1.79,
      1.75,
      1.78,
      1.75,
      1.78,
      1.75,
      1.78,
      1.75,
      1.78,
      1.75,
      null,
      1.75,
      1.9,
      1.81,
      1.75,
      1.81,
      1.75,
      1.81,
      1.75,
      1.8,
      1.75,
      1.78,
      1.75,
      1.78,
      1.75,
      1.78,
      1.75,
      1.78,
      1.75,
      null,
      1.75,
      1.9,
      1.81,
      1.75,
      1.81,
      1.75,
      1.8,
      1.75,
      1.78,
      1.75,
      1.78,
      1.75,
      1.78,
      1.75,
      1.78,
      1.75,
      1.78,
      1.75,
      null,
      1.75,
      1.81,
      1.75,
      1.8,
      1.75,
      1.83,
      1.75,
      1.8,
      1.75,
      1.8,
      1.75,
      1.79,
      1.75,
      1.78,
      1.75,
      1.78,
      1.75,
      1.78,
      1.75,
      null,
      1.75,
      1.9,
      1.81,
      1.75,
      1.81,
      1.75,
      1.8,
      1.75,
      1.79,
      1.75,
      1.78,
      1.75,
      1.78,
      1.75,
      1.78,
      1.75,
      1.79,
      1.75,
      null,
      1.75,
      1.9,
      1.81,
      1.75,
      1.81,
      1.75,
      1.8,
      1.75,
      1.79,
      1.75,
      1.78,
      1.75,
      1.78,
      1.75,
      1.79,
      1.75,
      1.78,
      1.75,
      null,
      1.75,
      1.88,
      1.8,
      1.75,
      1.81,
      1.75,
      1.79,
      1.75,
      1.78,
      1.75,
      1.78,
      1.75,
      1.78,
      1.75,
      1.78,
      1.75,
      null,
      1.83,
      1.9,
      1.82,
      1.79,
      1.78,
      1.83,
      1.86,
      1.88,
      1.89,
      1.88,
      1.81,
      1.85,
      1.85,
      null,
      1.89,
      1.97,
      1.91,
      1.95,
      1.92,
      1.98,
      1.91,
      1.95,
      1.92,
      1.94,
      1.93,
      1.94,
      null,
      1.98,
      2.06,
      1.99,
      1.95,
      2.0,
      1.95,
      2.03,
      1.95,
      1.98,
      1.95,
      1.98,
      1.95,
      null,
      2.0,
      2.06,
      1.95,
      2.0,
      1.99,
      2.05,
      2.02,
      2.02,
      1.97,
      1.94,
      1.97,
      1.95
    ]
  }
}
